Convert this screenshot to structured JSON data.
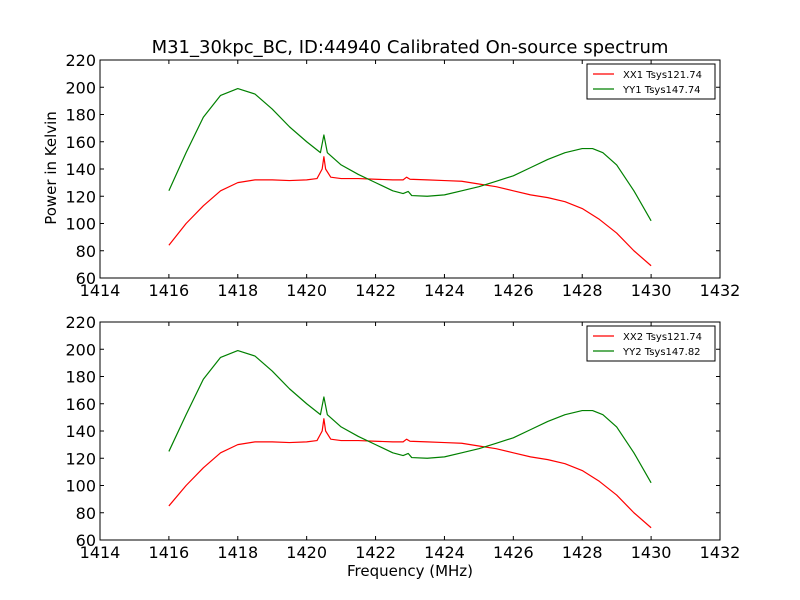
{
  "chart_data": [
    {
      "type": "line",
      "title": "M31_30kpc_BC, ID:44940 Calibrated On-source spectrum",
      "xlabel": "",
      "ylabel": "Power in Kelvin",
      "xlim": [
        1414,
        1432
      ],
      "ylim": [
        60,
        220
      ],
      "xticks": [
        1414,
        1416,
        1418,
        1420,
        1422,
        1424,
        1426,
        1428,
        1430,
        1432
      ],
      "yticks": [
        60,
        80,
        100,
        120,
        140,
        160,
        180,
        200,
        220
      ],
      "grid": false,
      "legend_position": "top-right",
      "series": [
        {
          "name": "XX1 Tsys121.74",
          "color": "#ff0000",
          "points": [
            [
              1416.0,
              84
            ],
            [
              1416.5,
              100
            ],
            [
              1417.0,
              113
            ],
            [
              1417.5,
              124
            ],
            [
              1418.0,
              130
            ],
            [
              1418.5,
              132
            ],
            [
              1419.0,
              132
            ],
            [
              1419.5,
              131.5
            ],
            [
              1420.0,
              132
            ],
            [
              1420.3,
              133
            ],
            [
              1420.45,
              140
            ],
            [
              1420.5,
              149
            ],
            [
              1420.55,
              140
            ],
            [
              1420.7,
              134
            ],
            [
              1421.0,
              133
            ],
            [
              1421.5,
              133
            ],
            [
              1422.0,
              132.5
            ],
            [
              1422.5,
              132
            ],
            [
              1422.8,
              132
            ],
            [
              1422.9,
              134
            ],
            [
              1423.0,
              132.5
            ],
            [
              1423.5,
              132
            ],
            [
              1424.0,
              131.5
            ],
            [
              1424.5,
              131
            ],
            [
              1425.0,
              129
            ],
            [
              1425.5,
              127
            ],
            [
              1426.0,
              124
            ],
            [
              1426.5,
              121
            ],
            [
              1427.0,
              119
            ],
            [
              1427.5,
              116
            ],
            [
              1428.0,
              111
            ],
            [
              1428.5,
              103
            ],
            [
              1429.0,
              93
            ],
            [
              1429.5,
              80
            ],
            [
              1430.0,
              69
            ]
          ]
        },
        {
          "name": "YY1 Tsys147.74",
          "color": "#008000",
          "points": [
            [
              1416.0,
              124
            ],
            [
              1416.5,
              152
            ],
            [
              1417.0,
              178
            ],
            [
              1417.5,
              194
            ],
            [
              1418.0,
              199
            ],
            [
              1418.5,
              195
            ],
            [
              1419.0,
              184
            ],
            [
              1419.5,
              171
            ],
            [
              1420.0,
              160
            ],
            [
              1420.4,
              152
            ],
            [
              1420.5,
              165
            ],
            [
              1420.6,
              152
            ],
            [
              1421.0,
              143
            ],
            [
              1421.5,
              136
            ],
            [
              1422.0,
              130
            ],
            [
              1422.5,
              124
            ],
            [
              1422.8,
              122
            ],
            [
              1422.95,
              123.5
            ],
            [
              1423.05,
              120.5
            ],
            [
              1423.5,
              120
            ],
            [
              1424.0,
              121
            ],
            [
              1424.5,
              124
            ],
            [
              1425.0,
              127
            ],
            [
              1425.5,
              131
            ],
            [
              1426.0,
              135
            ],
            [
              1426.5,
              141
            ],
            [
              1427.0,
              147
            ],
            [
              1427.5,
              152
            ],
            [
              1428.0,
              155
            ],
            [
              1428.3,
              155
            ],
            [
              1428.6,
              152
            ],
            [
              1429.0,
              143
            ],
            [
              1429.5,
              124
            ],
            [
              1430.0,
              102
            ]
          ]
        }
      ]
    },
    {
      "type": "line",
      "title": "",
      "xlabel": "Frequency (MHz)",
      "ylabel": "",
      "xlim": [
        1414,
        1432
      ],
      "ylim": [
        60,
        220
      ],
      "xticks": [
        1414,
        1416,
        1418,
        1420,
        1422,
        1424,
        1426,
        1428,
        1430,
        1432
      ],
      "yticks": [
        60,
        80,
        100,
        120,
        140,
        160,
        180,
        200,
        220
      ],
      "grid": false,
      "legend_position": "top-right",
      "series": [
        {
          "name": "XX2 Tsys121.74",
          "color": "#ff0000",
          "points": [
            [
              1416.0,
              85
            ],
            [
              1416.5,
              100
            ],
            [
              1417.0,
              113
            ],
            [
              1417.5,
              124
            ],
            [
              1418.0,
              130
            ],
            [
              1418.5,
              132
            ],
            [
              1419.0,
              132
            ],
            [
              1419.5,
              131.5
            ],
            [
              1420.0,
              132
            ],
            [
              1420.3,
              133
            ],
            [
              1420.45,
              140
            ],
            [
              1420.5,
              149
            ],
            [
              1420.55,
              140
            ],
            [
              1420.7,
              134
            ],
            [
              1421.0,
              133
            ],
            [
              1421.5,
              133
            ],
            [
              1422.0,
              132.5
            ],
            [
              1422.5,
              132
            ],
            [
              1422.8,
              132
            ],
            [
              1422.9,
              134
            ],
            [
              1423.0,
              132.5
            ],
            [
              1423.5,
              132
            ],
            [
              1424.0,
              131.5
            ],
            [
              1424.5,
              131
            ],
            [
              1425.0,
              129
            ],
            [
              1425.5,
              127
            ],
            [
              1426.0,
              124
            ],
            [
              1426.5,
              121
            ],
            [
              1427.0,
              119
            ],
            [
              1427.5,
              116
            ],
            [
              1428.0,
              111
            ],
            [
              1428.5,
              103
            ],
            [
              1429.0,
              93
            ],
            [
              1429.5,
              80
            ],
            [
              1430.0,
              69
            ]
          ]
        },
        {
          "name": "YY2 Tsys147.82",
          "color": "#008000",
          "points": [
            [
              1416.0,
              125
            ],
            [
              1416.5,
              152
            ],
            [
              1417.0,
              178
            ],
            [
              1417.5,
              194
            ],
            [
              1418.0,
              199
            ],
            [
              1418.5,
              195
            ],
            [
              1419.0,
              184
            ],
            [
              1419.5,
              171
            ],
            [
              1420.0,
              160
            ],
            [
              1420.4,
              152
            ],
            [
              1420.5,
              165
            ],
            [
              1420.6,
              152
            ],
            [
              1421.0,
              143
            ],
            [
              1421.5,
              136
            ],
            [
              1422.0,
              130
            ],
            [
              1422.5,
              124
            ],
            [
              1422.8,
              122
            ],
            [
              1422.95,
              123.5
            ],
            [
              1423.05,
              120.5
            ],
            [
              1423.5,
              120
            ],
            [
              1424.0,
              121
            ],
            [
              1424.5,
              124
            ],
            [
              1425.0,
              127
            ],
            [
              1425.5,
              131
            ],
            [
              1426.0,
              135
            ],
            [
              1426.5,
              141
            ],
            [
              1427.0,
              147
            ],
            [
              1427.5,
              152
            ],
            [
              1428.0,
              155
            ],
            [
              1428.3,
              155
            ],
            [
              1428.6,
              152
            ],
            [
              1429.0,
              143
            ],
            [
              1429.5,
              124
            ],
            [
              1430.0,
              102
            ]
          ]
        }
      ]
    }
  ]
}
